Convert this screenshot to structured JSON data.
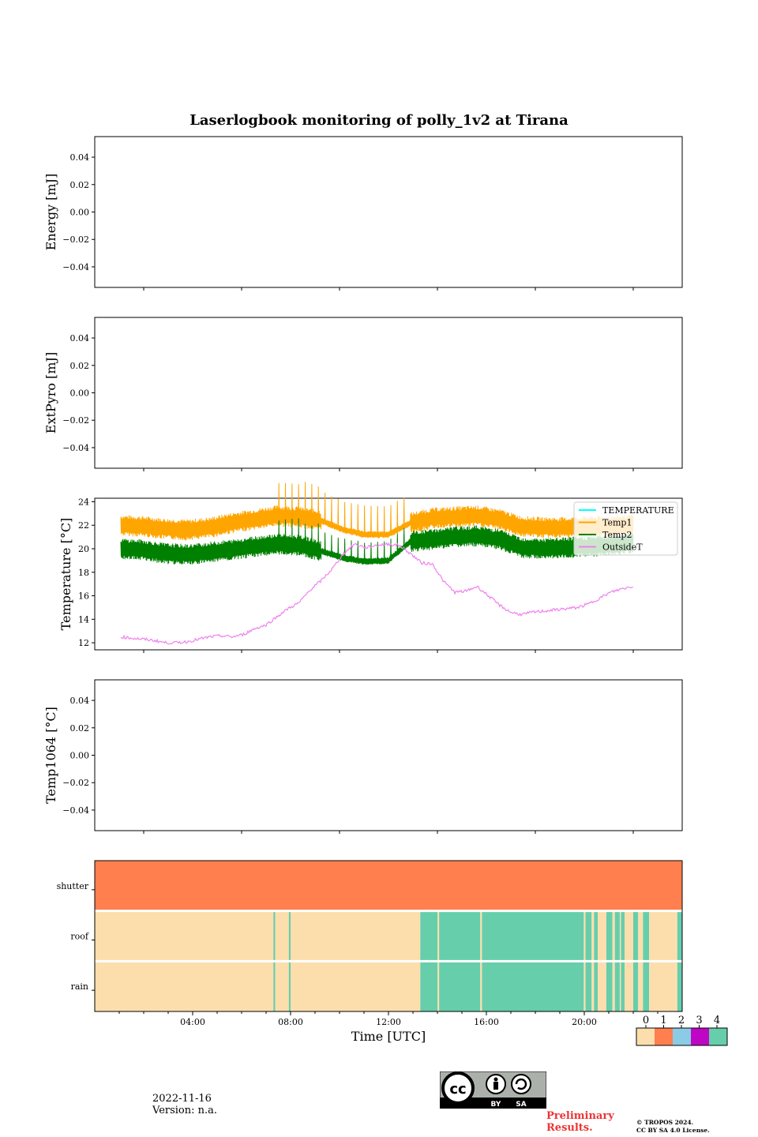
{
  "figure": {
    "title": "Laserlogbook monitoring of polly_1v2 at Tirana",
    "xlabel": "Time [UTC]",
    "date": "2022-11-16",
    "version": "Version: n.a.",
    "preliminary": [
      "Preliminary",
      "Results."
    ],
    "copyright": [
      "© TROPOS 2024.",
      "CC BY SA 4.0 License."
    ],
    "cc_badge": {
      "labels": [
        "BY",
        "SA"
      ]
    }
  },
  "chart_data": [
    {
      "type": "line",
      "ylabel": "Energy [mJ]",
      "yticks": [
        "0.04",
        "0.02",
        "0.00",
        "−0.02",
        "−0.04"
      ],
      "ylim": [
        -0.055,
        0.055
      ],
      "series": []
    },
    {
      "type": "line",
      "ylabel": "ExtPyro [mJ]",
      "yticks": [
        "0.04",
        "0.02",
        "0.00",
        "−0.02",
        "−0.04"
      ],
      "ylim": [
        -0.055,
        0.055
      ],
      "series": []
    },
    {
      "type": "line",
      "ylabel": "Temperature [°C]",
      "yticks": [
        "24",
        "22",
        "20",
        "18",
        "16",
        "14",
        "12"
      ],
      "ylim": [
        11.4,
        24.3
      ],
      "xlim_hours": [
        0,
        24
      ],
      "legend": "top-right",
      "series": [
        {
          "name": "TEMPERATURE",
          "color": "#00ffff",
          "x": [],
          "y": []
        },
        {
          "name": "Temp1",
          "color": "#ffa500",
          "x": [
            0.0,
            1.0,
            2.0,
            3.0,
            4.0,
            5.0,
            6.0,
            7.0,
            8.0,
            9.0,
            10.0,
            11.0,
            12.0,
            13.0,
            14.0,
            15.0,
            16.0,
            17.0,
            18.0,
            19.0,
            20.0,
            21.0,
            22.0,
            23.0
          ],
          "y": [
            22.0,
            21.9,
            21.7,
            21.6,
            21.8,
            22.2,
            22.5,
            22.8,
            22.7,
            22.4,
            21.6,
            21.2,
            21.2,
            22.2,
            22.6,
            22.7,
            22.8,
            22.5,
            21.9,
            21.8,
            21.8,
            21.9,
            21.9,
            22.0
          ]
        },
        {
          "name": "Temp2",
          "color": "#008000",
          "x": [
            0.0,
            1.0,
            2.0,
            3.0,
            4.0,
            5.0,
            6.0,
            7.0,
            8.0,
            9.0,
            10.0,
            11.0,
            12.0,
            13.0,
            14.0,
            15.0,
            16.0,
            17.0,
            18.0,
            19.0,
            20.0,
            21.0,
            22.0,
            23.0
          ],
          "y": [
            20.0,
            19.9,
            19.6,
            19.5,
            19.7,
            19.9,
            20.2,
            20.4,
            20.3,
            19.8,
            19.2,
            18.9,
            19.0,
            20.6,
            20.8,
            21.0,
            21.1,
            20.8,
            20.1,
            20.0,
            20.1,
            20.2,
            20.3,
            20.5
          ]
        },
        {
          "name": "OutsideT",
          "color": "#ee82ee",
          "x": [
            0.0,
            0.5,
            1.0,
            1.5,
            2.0,
            2.5,
            3.0,
            3.5,
            4.0,
            4.5,
            5.0,
            5.5,
            6.0,
            6.5,
            7.0,
            7.5,
            8.0,
            8.5,
            9.0,
            9.5,
            10.0,
            10.5,
            11.0,
            11.5,
            12.0,
            12.5,
            13.0,
            13.5,
            14.0,
            14.5,
            15.0,
            15.5,
            16.0,
            16.5,
            17.0,
            17.5,
            18.0,
            18.5,
            19.0,
            19.5,
            20.0,
            20.5,
            21.0,
            21.5,
            22.0,
            22.5,
            23.0
          ],
          "y": [
            12.5,
            12.4,
            12.3,
            12.2,
            12.0,
            12.0,
            12.1,
            12.3,
            12.5,
            12.6,
            12.5,
            12.7,
            13.2,
            13.5,
            14.2,
            14.9,
            15.4,
            16.5,
            17.3,
            18.3,
            19.6,
            20.4,
            20.1,
            20.3,
            20.4,
            20.3,
            19.6,
            18.8,
            18.7,
            17.2,
            16.3,
            16.4,
            16.8,
            16.0,
            15.2,
            14.6,
            14.4,
            14.6,
            14.7,
            14.8,
            14.9,
            15.0,
            15.3,
            15.8,
            16.3,
            16.6,
            16.8
          ]
        }
      ]
    },
    {
      "type": "line",
      "ylabel": "Temp1064 [°C]",
      "yticks": [
        "0.04",
        "0.02",
        "0.00",
        "−0.02",
        "−0.04"
      ],
      "ylim": [
        -0.055,
        0.055
      ],
      "series": []
    },
    {
      "type": "heatmap",
      "rows": [
        "shutter",
        "roof",
        "rain"
      ],
      "xticks": [
        "04:00",
        "08:00",
        "12:00",
        "16:00",
        "20:00"
      ],
      "xlim_hours": [
        0,
        24
      ],
      "colorbar": {
        "ticks": [
          "0",
          "1",
          "2",
          "3",
          "4"
        ],
        "colors": [
          "#fcdeac",
          "#ff7f4f",
          "#8ccbe6",
          "#c006c5",
          "#66ceab"
        ]
      },
      "cells": {
        "shutter": [
          [
            0,
            24,
            1
          ]
        ],
        "roof": [
          [
            0,
            7.3,
            0
          ],
          [
            7.3,
            7.37,
            4
          ],
          [
            7.37,
            7.93,
            0
          ],
          [
            7.93,
            8.0,
            4
          ],
          [
            8.0,
            13.3,
            0
          ],
          [
            13.3,
            14.0,
            4
          ],
          [
            14.0,
            14.07,
            0
          ],
          [
            14.07,
            15.75,
            4
          ],
          [
            15.75,
            15.82,
            0
          ],
          [
            15.82,
            19.98,
            4
          ],
          [
            19.98,
            20.05,
            0
          ],
          [
            20.05,
            20.3,
            4
          ],
          [
            20.3,
            20.4,
            0
          ],
          [
            20.4,
            20.55,
            4
          ],
          [
            20.55,
            20.9,
            0
          ],
          [
            20.9,
            21.15,
            4
          ],
          [
            21.15,
            21.25,
            0
          ],
          [
            21.25,
            21.45,
            4
          ],
          [
            21.45,
            21.5,
            0
          ],
          [
            21.5,
            21.65,
            4
          ],
          [
            21.65,
            22.0,
            0
          ],
          [
            22.0,
            22.2,
            4
          ],
          [
            22.2,
            22.4,
            0
          ],
          [
            22.4,
            22.65,
            4
          ],
          [
            22.65,
            23.8,
            0
          ],
          [
            23.8,
            24.0,
            4
          ]
        ],
        "rain": [
          [
            0,
            7.3,
            0
          ],
          [
            7.3,
            7.37,
            4
          ],
          [
            7.37,
            7.93,
            0
          ],
          [
            7.93,
            8.0,
            4
          ],
          [
            8.0,
            13.3,
            0
          ],
          [
            13.3,
            14.0,
            4
          ],
          [
            14.0,
            14.07,
            0
          ],
          [
            14.07,
            15.75,
            4
          ],
          [
            15.75,
            15.82,
            0
          ],
          [
            15.82,
            19.98,
            4
          ],
          [
            19.98,
            20.05,
            0
          ],
          [
            20.05,
            20.3,
            4
          ],
          [
            20.3,
            20.4,
            0
          ],
          [
            20.4,
            20.55,
            4
          ],
          [
            20.55,
            20.9,
            0
          ],
          [
            20.9,
            21.15,
            4
          ],
          [
            21.15,
            21.25,
            0
          ],
          [
            21.25,
            21.45,
            4
          ],
          [
            21.45,
            21.5,
            0
          ],
          [
            21.5,
            21.65,
            4
          ],
          [
            21.65,
            22.0,
            0
          ],
          [
            22.0,
            22.2,
            4
          ],
          [
            22.2,
            22.4,
            0
          ],
          [
            22.4,
            22.65,
            4
          ],
          [
            22.65,
            23.8,
            0
          ],
          [
            23.8,
            24.0,
            4
          ]
        ]
      }
    }
  ]
}
